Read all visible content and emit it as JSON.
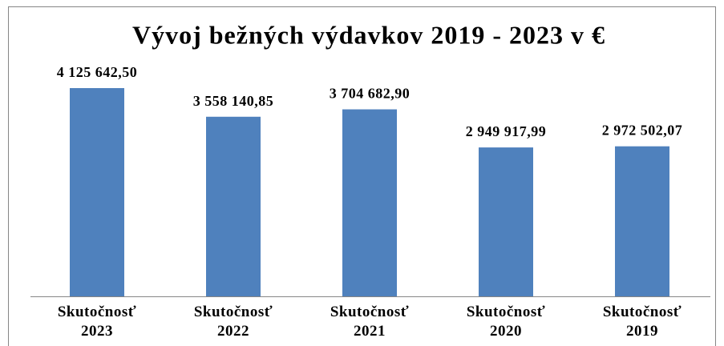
{
  "chart_data": {
    "type": "bar",
    "title": "Vývoj bežných výdavkov 2019 - 2023 v €",
    "categories": [
      "Skutočnosť 2023",
      "Skutočnosť 2022",
      "Skutočnosť 2021",
      "Skutočnosť 2020",
      "Skutočnosť 2019"
    ],
    "values": [
      4125642.5,
      3558140.85,
      3704682.9,
      2949917.99,
      2972502.07
    ],
    "value_labels": [
      "4 125 642,50",
      "3 558 140,85",
      "3 704 682,90",
      "2 949 917,99",
      "2 972 502,07"
    ],
    "color": "#4f81bd"
  }
}
